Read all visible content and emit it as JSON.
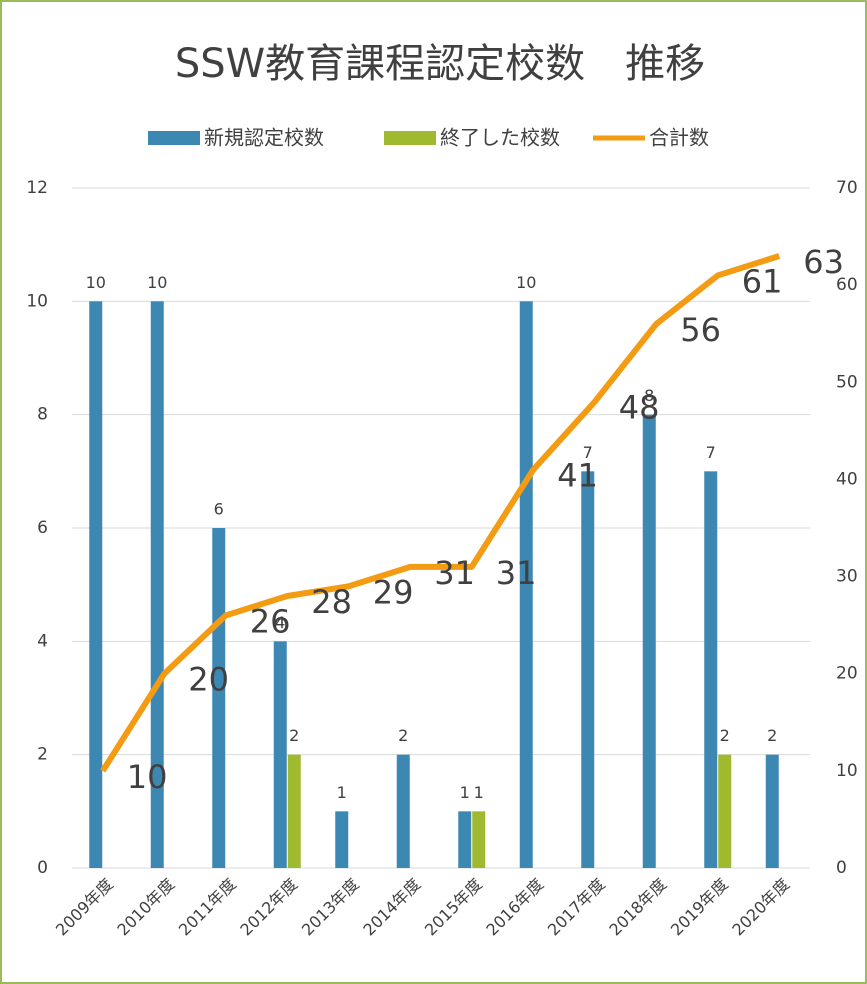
{
  "chart_data": {
    "type": "bar-line",
    "title": "SSW教育課程認定校数　推移",
    "categories": [
      "2009年度",
      "2010年度",
      "2011年度",
      "2012年度",
      "2013年度",
      "2014年度",
      "2015年度",
      "2016年度",
      "2017年度",
      "2018年度",
      "2019年度",
      "2020年度"
    ],
    "series": [
      {
        "name": "新規認定校数",
        "type": "bar",
        "color": "#3d87b3",
        "values": [
          10,
          10,
          6,
          4,
          1,
          2,
          1,
          10,
          7,
          8,
          7,
          2
        ]
      },
      {
        "name": "終了した校数",
        "type": "bar",
        "color": "#9fba2e",
        "values": [
          null,
          null,
          null,
          2,
          null,
          null,
          1,
          null,
          null,
          null,
          2,
          null
        ]
      },
      {
        "name": "合計数",
        "type": "line",
        "axis": "y2",
        "color": "#f39b12",
        "values": [
          10,
          20,
          26,
          28,
          29,
          31,
          31,
          41,
          48,
          56,
          61,
          63
        ]
      }
    ],
    "ylim": [
      0,
      12
    ],
    "yticks": [
      0,
      2,
      4,
      6,
      8,
      10,
      12
    ],
    "y2lim": [
      0,
      70
    ],
    "y2ticks": [
      0,
      10,
      20,
      30,
      40,
      50,
      60,
      70
    ],
    "grid": true,
    "legend": "top"
  }
}
